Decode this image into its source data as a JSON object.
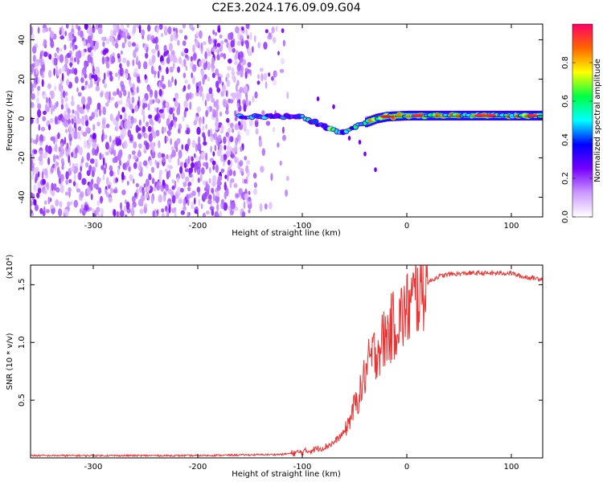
{
  "figure": {
    "title": "C2E3.2024.176.09.09.G04"
  },
  "chart_data": [
    {
      "type": "heatmap",
      "xlabel": "Height of straight line (km)",
      "ylabel": "Frequency (Hz)",
      "xlim": [
        -360,
        130
      ],
      "ylim": [
        -50,
        48
      ],
      "x_ticks": [
        -300,
        -200,
        -100,
        0,
        100
      ],
      "y_ticks": [
        -40,
        -20,
        0,
        20,
        40
      ],
      "colorbar": {
        "label": "Normalized spectral amplitude",
        "range": [
          0,
          1
        ],
        "ticks": [
          0.0,
          0.2,
          0.4,
          0.6,
          0.8
        ],
        "colors": [
          "#ffffff",
          "#cc99ff",
          "#7700ff",
          "#0000ff",
          "#00ffff",
          "#00ff44",
          "#ffff00",
          "#ff6600",
          "#ff0066"
        ]
      },
      "features": [
        {
          "kind": "noise",
          "x_range": [
            -360,
            -110
          ],
          "y_range": [
            -50,
            48
          ]
        },
        {
          "kind": "carrier",
          "x": [
            -160,
            -120,
            -100,
            -80,
            -70,
            -60,
            -50,
            -40,
            -30,
            -20,
            0,
            50,
            100,
            130
          ],
          "y": [
            1,
            1,
            1,
            -4,
            -6,
            -7,
            -4,
            -2,
            0,
            1,
            1.5,
            1.5,
            1.5,
            1.5
          ]
        }
      ]
    },
    {
      "type": "line",
      "xlabel": "Height of straight line (km)",
      "ylabel": "SNR (10 * v/v)",
      "y_multiplier": "(x10⁴)",
      "xlim": [
        -360,
        130
      ],
      "ylim": [
        0,
        1.67
      ],
      "x_ticks": [
        -300,
        -200,
        -100,
        0,
        100
      ],
      "y_ticks": [
        0.5,
        1.0,
        1.5
      ],
      "series": [
        {
          "color": "#ee3333",
          "x": [
            -360,
            -300,
            -200,
            -120,
            -100,
            -80,
            -70,
            -60,
            -55,
            -50,
            -45,
            -40,
            -35,
            -30,
            -25,
            -20,
            -15,
            -10,
            -5,
            0,
            5,
            10,
            15,
            20,
            30,
            40,
            60,
            80,
            100,
            110,
            120,
            130
          ],
          "y": [
            0.02,
            0.02,
            0.02,
            0.03,
            0.05,
            0.09,
            0.13,
            0.22,
            0.32,
            0.45,
            0.55,
            0.72,
            0.85,
            0.92,
            0.98,
            1.05,
            1.12,
            1.18,
            1.22,
            1.28,
            1.34,
            1.42,
            1.48,
            1.52,
            1.57,
            1.59,
            1.6,
            1.6,
            1.6,
            1.57,
            1.56,
            1.55
          ]
        }
      ]
    }
  ]
}
